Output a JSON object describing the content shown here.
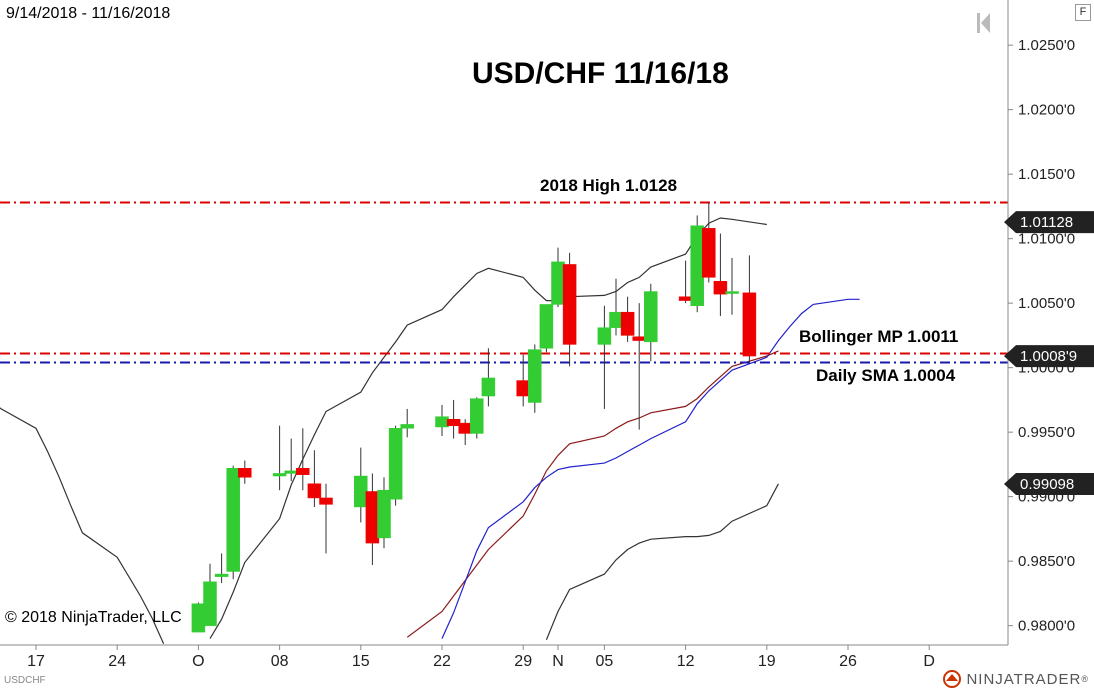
{
  "header": {
    "date_range": "9/14/2018 - 11/16/2018",
    "title": "USD/CHF 11/16/18"
  },
  "annotations": {
    "high_label": "2018 High 1.0128",
    "bollinger_label": "Bollinger MP 1.0011",
    "sma_label": "Daily SMA  1.0004"
  },
  "footer": {
    "copyright": "© 2018 NinjaTrader, LLC",
    "symbol": "USDCHF",
    "brand": "NINJATRADER",
    "brand_mark": "®"
  },
  "toolbar": {
    "f_button": "F"
  },
  "colors": {
    "up_candle": "#33cc33",
    "down_candle": "#ee0000",
    "high_line": "#dd0000",
    "boll_line": "#dd0000",
    "sma_line": "#1a1aaa",
    "bollinger_band": "#333333",
    "red_ma": "#8b1a1a",
    "blue_ma": "#2222cc",
    "price_badge": "#222222"
  },
  "chart_data": {
    "type": "candlestick",
    "title": "USD/CHF 11/16/18",
    "ylim": [
      0.9785,
      1.0285
    ],
    "y_ticks": [
      "1.0250'0",
      "1.0200'0",
      "1.0150'0",
      "1.0100'0",
      "1.0050'0",
      "1.0000'0",
      "0.9950'0",
      "0.9900'0",
      "0.9850'0",
      "0.9800'0"
    ],
    "y_tick_values": [
      1.025,
      1.02,
      1.015,
      1.01,
      1.005,
      1.0,
      0.995,
      0.99,
      0.985,
      0.98
    ],
    "x_ticks": [
      {
        "label": "17",
        "date": "2018-09-17"
      },
      {
        "label": "24",
        "date": "2018-09-24"
      },
      {
        "label": "O",
        "date": "2018-10-01"
      },
      {
        "label": "08",
        "date": "2018-10-08"
      },
      {
        "label": "15",
        "date": "2018-10-15"
      },
      {
        "label": "22",
        "date": "2018-10-22"
      },
      {
        "label": "29",
        "date": "2018-10-29"
      },
      {
        "label": "N",
        "date": "2018-11-01"
      },
      {
        "label": "05",
        "date": "2018-11-05"
      },
      {
        "label": "12",
        "date": "2018-11-12"
      },
      {
        "label": "19",
        "date": "2018-11-19"
      },
      {
        "label": "26",
        "date": "2018-11-26"
      },
      {
        "label": "D",
        "date": "2018-12-03"
      }
    ],
    "candles": [
      {
        "date": "2018-10-01",
        "open": 0.9795,
        "high": 0.9818,
        "low": 0.9795,
        "close": 0.9817
      },
      {
        "date": "2018-10-02",
        "open": 0.98,
        "high": 0.9848,
        "low": 0.98,
        "close": 0.9834
      },
      {
        "date": "2018-10-03",
        "open": 0.9838,
        "high": 0.9856,
        "low": 0.9833,
        "close": 0.984
      },
      {
        "date": "2018-10-04",
        "open": 0.9842,
        "high": 0.9924,
        "low": 0.9836,
        "close": 0.9922
      },
      {
        "date": "2018-10-05",
        "open": 0.9922,
        "high": 0.9928,
        "low": 0.991,
        "close": 0.9915
      },
      {
        "date": "2018-10-08",
        "open": 0.9916,
        "high": 0.9955,
        "low": 0.9905,
        "close": 0.9918
      },
      {
        "date": "2018-10-09",
        "open": 0.9918,
        "high": 0.9945,
        "low": 0.9912,
        "close": 0.992
      },
      {
        "date": "2018-10-10",
        "open": 0.9922,
        "high": 0.9953,
        "low": 0.9905,
        "close": 0.9917
      },
      {
        "date": "2018-10-11",
        "open": 0.991,
        "high": 0.9936,
        "low": 0.9892,
        "close": 0.9899
      },
      {
        "date": "2018-10-12",
        "open": 0.9899,
        "high": 0.991,
        "low": 0.9856,
        "close": 0.9894
      },
      {
        "date": "2018-10-15",
        "open": 0.9892,
        "high": 0.9938,
        "low": 0.988,
        "close": 0.9916
      },
      {
        "date": "2018-10-16",
        "open": 0.9904,
        "high": 0.9918,
        "low": 0.9847,
        "close": 0.9864
      },
      {
        "date": "2018-10-17",
        "open": 0.9868,
        "high": 0.9915,
        "low": 0.986,
        "close": 0.9905
      },
      {
        "date": "2018-10-18",
        "open": 0.9898,
        "high": 0.9955,
        "low": 0.9893,
        "close": 0.9953
      },
      {
        "date": "2018-10-19",
        "open": 0.9953,
        "high": 0.9968,
        "low": 0.9946,
        "close": 0.9956
      },
      {
        "date": "2018-10-22",
        "open": 0.9954,
        "high": 0.9971,
        "low": 0.9947,
        "close": 0.9962
      },
      {
        "date": "2018-10-23",
        "open": 0.996,
        "high": 0.9975,
        "low": 0.9945,
        "close": 0.9955
      },
      {
        "date": "2018-10-24",
        "open": 0.9957,
        "high": 0.996,
        "low": 0.994,
        "close": 0.9949
      },
      {
        "date": "2018-10-25",
        "open": 0.9949,
        "high": 0.9977,
        "low": 0.9945,
        "close": 0.9976
      },
      {
        "date": "2018-10-26",
        "open": 0.9978,
        "high": 1.0015,
        "low": 0.997,
        "close": 0.9992
      },
      {
        "date": "2018-10-29",
        "open": 0.999,
        "high": 1.001,
        "low": 0.997,
        "close": 0.9978
      },
      {
        "date": "2018-10-30",
        "open": 0.9973,
        "high": 1.0018,
        "low": 0.9965,
        "close": 1.0014
      },
      {
        "date": "2018-10-31",
        "open": 1.0015,
        "high": 1.0046,
        "low": 1.0012,
        "close": 1.0049
      },
      {
        "date": "2018-11-01",
        "open": 1.0049,
        "high": 1.0093,
        "low": 1.0047,
        "close": 1.0082
      },
      {
        "date": "2018-11-02",
        "open": 1.008,
        "high": 1.0089,
        "low": 1.0001,
        "close": 1.0018
      },
      {
        "date": "2018-11-05",
        "open": 1.0018,
        "high": 1.0048,
        "low": 0.9968,
        "close": 1.0031
      },
      {
        "date": "2018-11-06",
        "open": 1.0031,
        "high": 1.0069,
        "low": 1.0025,
        "close": 1.0043
      },
      {
        "date": "2018-11-07",
        "open": 1.0043,
        "high": 1.0055,
        "low": 1.002,
        "close": 1.0025
      },
      {
        "date": "2018-11-08",
        "open": 1.0024,
        "high": 1.005,
        "low": 0.9952,
        "close": 1.0021
      },
      {
        "date": "2018-11-09",
        "open": 1.002,
        "high": 1.0065,
        "low": 1.0005,
        "close": 1.0059
      },
      {
        "date": "2018-11-12",
        "open": 1.0055,
        "high": 1.0083,
        "low": 1.005,
        "close": 1.0052
      },
      {
        "date": "2018-11-13",
        "open": 1.0048,
        "high": 1.0118,
        "low": 1.0043,
        "close": 1.011
      },
      {
        "date": "2018-11-14",
        "open": 1.0108,
        "high": 1.0128,
        "low": 1.0066,
        "close": 1.007
      },
      {
        "date": "2018-11-15",
        "open": 1.0067,
        "high": 1.0104,
        "low": 1.004,
        "close": 1.0057
      },
      {
        "date": "2018-11-16",
        "open": 1.0058,
        "high": 1.0085,
        "low": 1.0041,
        "close": 1.0059
      },
      {
        "date": "2018-11-16",
        "open": 1.0058,
        "high": 1.0087,
        "low": 1.0004,
        "close": 1.0009
      }
    ],
    "horizontal_lines": [
      {
        "value": 1.0128,
        "label": "2018 High 1.0128",
        "color": "#dd0000",
        "style": "dashdot"
      },
      {
        "value": 1.0011,
        "label": "Bollinger MP 1.0011",
        "color": "#dd0000",
        "style": "dashdot"
      },
      {
        "value": 1.0004,
        "label": "Daily SMA  1.0004",
        "color": "#1a1aaa",
        "style": "dashdot"
      }
    ],
    "price_badges": [
      {
        "value": 1.01128,
        "label": "1.01128"
      },
      {
        "value": 1.00089,
        "label": "1.0008'9"
      },
      {
        "value": 0.99098,
        "label": "0.99098"
      }
    ],
    "series": [
      {
        "color": "#333333",
        "points": [
          [
            "2018-09-13",
            0.9975
          ],
          [
            "2018-09-14",
            0.9968
          ],
          [
            "2018-09-17",
            0.9953
          ],
          [
            "2018-09-18",
            0.9935
          ],
          [
            "2018-09-19",
            0.9915
          ],
          [
            "2018-09-20",
            0.9893
          ],
          [
            "2018-09-21",
            0.9872
          ],
          [
            "2018-09-24",
            0.9853
          ],
          [
            "2018-09-25",
            0.9838
          ],
          [
            "2018-09-26",
            0.9823
          ],
          [
            "2018-09-27",
            0.9806
          ],
          [
            "2018-09-28",
            0.9786
          ]
        ]
      },
      {
        "color": "#333333",
        "points": [
          [
            "2018-10-02",
            0.979
          ],
          [
            "2018-10-03",
            0.9805
          ],
          [
            "2018-10-04",
            0.9826
          ],
          [
            "2018-10-05",
            0.9849
          ],
          [
            "2018-10-08",
            0.9883
          ],
          [
            "2018-10-09",
            0.9909
          ],
          [
            "2018-10-10",
            0.9929
          ],
          [
            "2018-10-11",
            0.9948
          ],
          [
            "2018-10-12",
            0.9966
          ],
          [
            "2018-10-15",
            0.9981
          ],
          [
            "2018-10-16",
            0.9996
          ],
          [
            "2018-10-17",
            1.0008
          ],
          [
            "2018-10-18",
            1.002
          ],
          [
            "2018-10-19",
            1.0033
          ],
          [
            "2018-10-22",
            1.0045
          ],
          [
            "2018-10-23",
            1.0055
          ],
          [
            "2018-10-24",
            1.0064
          ],
          [
            "2018-10-25",
            1.0073
          ],
          [
            "2018-10-26",
            1.0077
          ],
          [
            "2018-10-29",
            1.007
          ],
          [
            "2018-10-30",
            1.006
          ],
          [
            "2018-10-31",
            1.0052
          ],
          [
            "2018-11-01",
            1.0052
          ],
          [
            "2018-11-02",
            1.0055
          ],
          [
            "2018-11-05",
            1.0056
          ],
          [
            "2018-11-06",
            1.0059
          ],
          [
            "2018-11-07",
            1.0066
          ],
          [
            "2018-11-08",
            1.007
          ],
          [
            "2018-11-09",
            1.0078
          ],
          [
            "2018-11-12",
            1.0088
          ],
          [
            "2018-11-13",
            1.0102
          ],
          [
            "2018-11-14",
            1.0112
          ],
          [
            "2018-11-15",
            1.0116
          ],
          [
            "2018-11-16",
            1.0115
          ],
          [
            "2018-11-19",
            1.0111
          ]
        ]
      },
      {
        "color": "#333333",
        "points": [
          [
            "2018-10-31",
            0.9789
          ],
          [
            "2018-11-01",
            0.9811
          ],
          [
            "2018-11-02",
            0.9828
          ],
          [
            "2018-11-05",
            0.984
          ],
          [
            "2018-11-06",
            0.9851
          ],
          [
            "2018-11-07",
            0.9859
          ],
          [
            "2018-11-08",
            0.9864
          ],
          [
            "2018-11-09",
            0.9867
          ],
          [
            "2018-11-12",
            0.9869
          ],
          [
            "2018-11-13",
            0.9869
          ],
          [
            "2018-11-14",
            0.987
          ],
          [
            "2018-11-15",
            0.9873
          ],
          [
            "2018-11-16",
            0.9881
          ],
          [
            "2018-11-19",
            0.9893
          ],
          [
            "2018-11-20",
            0.991
          ]
        ]
      },
      {
        "color": "#8b1a1a",
        "points": [
          [
            "2018-10-19",
            0.9791
          ],
          [
            "2018-10-22",
            0.9811
          ],
          [
            "2018-10-24",
            0.9835
          ],
          [
            "2018-10-26",
            0.9859
          ],
          [
            "2018-10-29",
            0.9885
          ],
          [
            "2018-10-30",
            0.9902
          ],
          [
            "2018-10-31",
            0.992
          ],
          [
            "2018-11-01",
            0.9932
          ],
          [
            "2018-11-02",
            0.9941
          ],
          [
            "2018-11-05",
            0.9947
          ],
          [
            "2018-11-06",
            0.9953
          ],
          [
            "2018-11-07",
            0.9958
          ],
          [
            "2018-11-08",
            0.9961
          ],
          [
            "2018-11-09",
            0.9965
          ],
          [
            "2018-11-12",
            0.997
          ],
          [
            "2018-11-13",
            0.9976
          ],
          [
            "2018-11-14",
            0.9985
          ],
          [
            "2018-11-15",
            0.9993
          ],
          [
            "2018-11-16",
            1.0001
          ],
          [
            "2018-11-19",
            1.0009
          ],
          [
            "2018-11-20",
            1.0013
          ]
        ]
      },
      {
        "color": "#2222cc",
        "points": [
          [
            "2018-10-22",
            0.979
          ],
          [
            "2018-10-23",
            0.981
          ],
          [
            "2018-10-24",
            0.9834
          ],
          [
            "2018-10-25",
            0.9858
          ],
          [
            "2018-10-26",
            0.9876
          ],
          [
            "2018-10-29",
            0.9896
          ],
          [
            "2018-10-30",
            0.9907
          ],
          [
            "2018-10-31",
            0.9915
          ],
          [
            "2018-11-01",
            0.9921
          ],
          [
            "2018-11-02",
            0.9923
          ],
          [
            "2018-11-05",
            0.9926
          ],
          [
            "2018-11-06",
            0.993
          ],
          [
            "2018-11-07",
            0.9935
          ],
          [
            "2018-11-08",
            0.994
          ],
          [
            "2018-11-09",
            0.9945
          ],
          [
            "2018-11-12",
            0.9958
          ],
          [
            "2018-11-13",
            0.9972
          ],
          [
            "2018-11-14",
            0.9982
          ],
          [
            "2018-11-15",
            0.999
          ],
          [
            "2018-11-16",
            0.9998
          ],
          [
            "2018-11-19",
            1.0008
          ],
          [
            "2018-11-20",
            1.0021
          ],
          [
            "2018-11-21",
            1.0032
          ],
          [
            "2018-11-22",
            1.0042
          ],
          [
            "2018-11-23",
            1.0049
          ],
          [
            "2018-11-26",
            1.0053
          ],
          [
            "2018-11-27",
            1.0053
          ]
        ]
      }
    ]
  }
}
